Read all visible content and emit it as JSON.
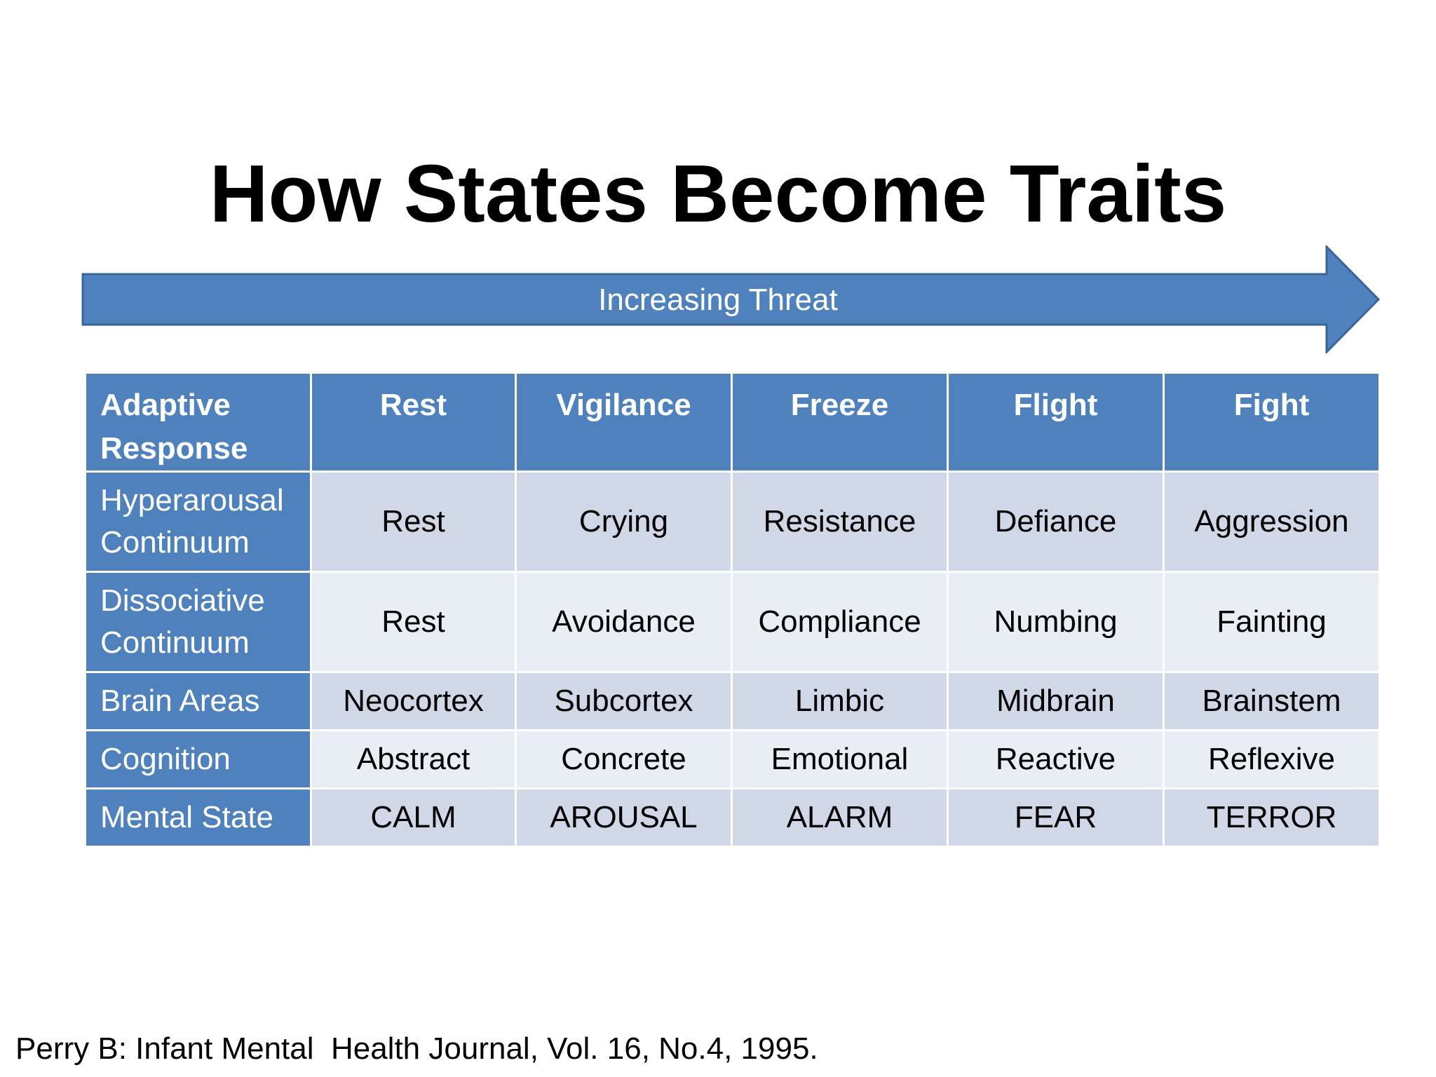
{
  "title": "How States Become Traits",
  "arrow": {
    "label": "Increasing Threat",
    "fill_color": "#4f81bd",
    "stroke_color": "#3a6598"
  },
  "table": {
    "header": {
      "corner_line1": "Adaptive",
      "corner_line2": "Response",
      "columns": [
        "Rest",
        "Vigilance",
        "Freeze",
        "Flight",
        "Fight"
      ]
    },
    "rows": [
      {
        "label_line1": "Hyperarousal",
        "label_line2": "Continuum",
        "cells": [
          "Rest",
          "Crying",
          "Resistance",
          "Defiance",
          "Aggression"
        ]
      },
      {
        "label_line1": "Dissociative",
        "label_line2": "Continuum",
        "cells": [
          "Rest",
          "Avoidance",
          "Compliance",
          "Numbing",
          "Fainting"
        ]
      },
      {
        "label_line1": "Brain Areas",
        "cells": [
          "Neocortex",
          "Subcortex",
          "Limbic",
          "Midbrain",
          "Brainstem"
        ]
      },
      {
        "label_line1": "Cognition",
        "cells": [
          "Abstract",
          "Concrete",
          "Emotional",
          "Reactive",
          "Reflexive"
        ]
      },
      {
        "label_line1": "Mental State",
        "cells": [
          "CALM",
          "AROUSAL",
          "ALARM",
          "FEAR",
          "TERROR"
        ]
      }
    ],
    "colors": {
      "header": "#4f81bd",
      "band_dark": "#d0d8e8",
      "band_light": "#e9edf4"
    }
  },
  "citation": "Perry B: Infant Mental  Health Journal, Vol. 16, No.4, 1995."
}
